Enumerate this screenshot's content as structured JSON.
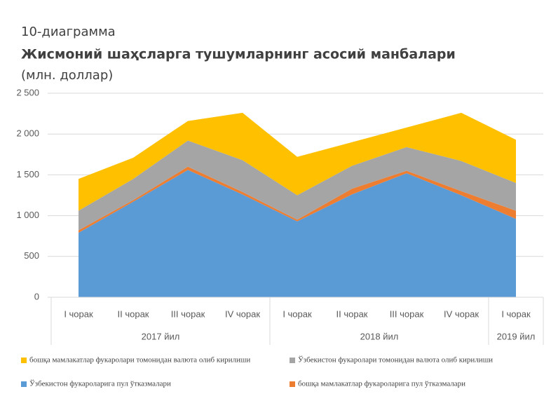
{
  "chart_data": {
    "type": "stacked_area",
    "title_prefix": "10-диаграмма",
    "title": "Жисмоний шаҳсларга тушумларнинг асосий манбалари",
    "subtitle": "(млн. доллар)",
    "category_groups": [
      {
        "label": "2017 йил",
        "categories": [
          "I чорак",
          "II чорак",
          "III чорак",
          "IV чорак"
        ]
      },
      {
        "label": "2018 йил",
        "categories": [
          "I чорак",
          "II чорак",
          "III чорак",
          "IV чорак"
        ]
      },
      {
        "label": "2019 йил",
        "categories": [
          "I чорак"
        ]
      }
    ],
    "series": [
      {
        "name": "Ўзбекистон фукароларига пул ўтказмалари",
        "color": "#5b9bd5",
        "values": [
          790,
          1170,
          1560,
          1260,
          930,
          1260,
          1520,
          1250,
          960
        ]
      },
      {
        "name": "бошқа мамлакатлар фукароларига пул ўтказмалари",
        "color": "#ed7d31",
        "values": [
          30,
          20,
          40,
          30,
          20,
          70,
          30,
          50,
          100
        ]
      },
      {
        "name": "Ўзбекистон фукаролари томонидан валюта олиб кирилиши",
        "color": "#a5a5a5",
        "values": [
          240,
          260,
          320,
          390,
          300,
          280,
          290,
          370,
          340
        ]
      },
      {
        "name": "бошқа мамлакатлар фукаролари томонидан валюта олиб кирилиши",
        "color": "#ffc000",
        "values": [
          390,
          260,
          240,
          580,
          470,
          290,
          240,
          590,
          530
        ]
      }
    ],
    "ylim": [
      0,
      2500
    ],
    "yticks": [
      0,
      {
        "value": 500,
        "label": "500"
      },
      {
        "value": 1000,
        "label": "1 000"
      },
      {
        "value": 1500,
        "label": "1 500"
      },
      {
        "value": 2000,
        "label": "2 000"
      },
      {
        "value": 2500,
        "label": "2 500"
      }
    ],
    "grid": true
  }
}
